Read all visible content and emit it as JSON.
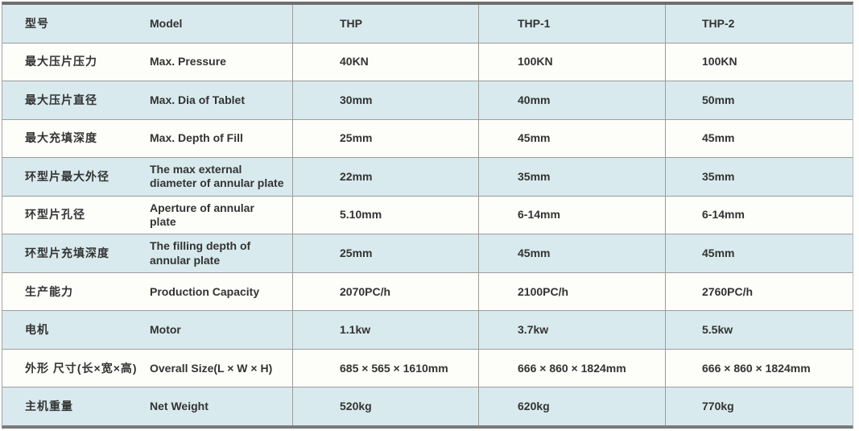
{
  "colors": {
    "stripe_blue": "#d9eaee",
    "row_white": "#fdfdfa",
    "grid_line": "#9c9c9c",
    "frame_dark": "#6e6e6e",
    "text": "#333333"
  },
  "table": {
    "rows": [
      {
        "cn": "型号",
        "en": "Model",
        "thp": "THP",
        "thp1": "THP-1",
        "thp2": "THP-2"
      },
      {
        "cn": "最大压片压力",
        "en": "Max. Pressure",
        "thp": "40KN",
        "thp1": "100KN",
        "thp2": "100KN"
      },
      {
        "cn": "最大压片直径",
        "en": "Max. Dia of Tablet",
        "thp": "30mm",
        "thp1": "40mm",
        "thp2": "50mm"
      },
      {
        "cn": "最大充填深度",
        "en": "Max. Depth of Fill",
        "thp": "25mm",
        "thp1": "45mm",
        "thp2": "45mm"
      },
      {
        "cn": "环型片最大外径",
        "en": "The max external",
        "en2": "diameter of annular plate",
        "thp": "22mm",
        "thp1": "35mm",
        "thp2": "35mm"
      },
      {
        "cn": "环型片孔径",
        "en": "Aperture of annular",
        "en2": "plate",
        "thp": "5.10mm",
        "thp1": "6-14mm",
        "thp2": "6-14mm"
      },
      {
        "cn": "环型片充填深度",
        "en": "The filling depth of",
        "en2": "annular plate",
        "thp": "25mm",
        "thp1": "45mm",
        "thp2": "45mm"
      },
      {
        "cn": "生产能力",
        "en": "Production Capacity",
        "thp": "2070PC/h",
        "thp1": "2100PC/h",
        "thp2": "2760PC/h"
      },
      {
        "cn": "电机",
        "en": "Motor",
        "thp": "1.1kw",
        "thp1": "3.7kw",
        "thp2": "5.5kw"
      },
      {
        "cn": "外形 尺寸(长×宽×高)",
        "en": "Overall Size(L × W × H)",
        "thp": "685 × 565 × 1610mm",
        "thp1": "666 × 860 × 1824mm",
        "thp2": "666 × 860 × 1824mm"
      },
      {
        "cn": "主机重量",
        "en": "Net Weight",
        "thp": "520kg",
        "thp1": "620kg",
        "thp2": "770kg"
      }
    ]
  }
}
